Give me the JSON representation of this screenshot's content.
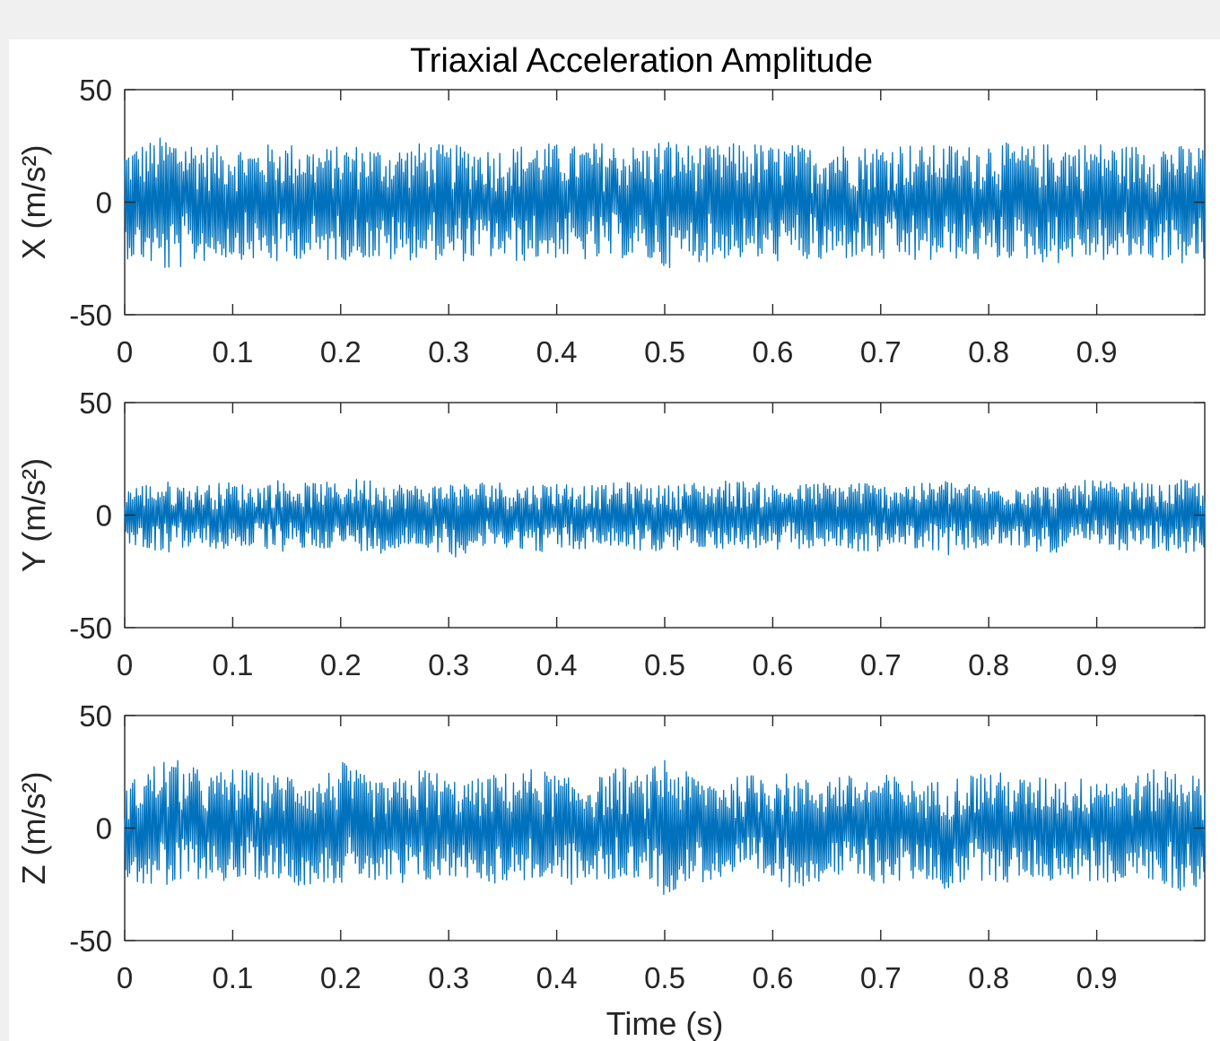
{
  "chart_data": {
    "type": "line",
    "title": "Triaxial Acceleration Amplitude",
    "xlabel": "Time (s)",
    "xlim": [
      0,
      1
    ],
    "x_ticks": [
      "0",
      "0.1",
      "0.2",
      "0.3",
      "0.4",
      "0.5",
      "0.6",
      "0.7",
      "0.8",
      "0.9"
    ],
    "y_ticks": [
      "50",
      "0",
      "-50"
    ],
    "grid": false,
    "line_color": "#0072BD",
    "subplots": [
      {
        "ylabel": "X (m/s²)",
        "ylim": [
          -50,
          50
        ],
        "series": [
          {
            "x": [
              0.0,
              0.02,
              0.04,
              0.06,
              0.08,
              0.1,
              0.12,
              0.14,
              0.16,
              0.18,
              0.2,
              0.22,
              0.24,
              0.26,
              0.28,
              0.3,
              0.32,
              0.34,
              0.36,
              0.38,
              0.4,
              0.42,
              0.44,
              0.46,
              0.48,
              0.5,
              0.52,
              0.54,
              0.56,
              0.58,
              0.6,
              0.62,
              0.64,
              0.66,
              0.68,
              0.7,
              0.72,
              0.74,
              0.76,
              0.78,
              0.8,
              0.82,
              0.84,
              0.86,
              0.88,
              0.9,
              0.92,
              0.94,
              0.96,
              0.98,
              1.0
            ],
            "upper": [
              24,
              27,
              30,
              28,
              25,
              26,
              24,
              27,
              26,
              24,
              25,
              26,
              24,
              25,
              27,
              25,
              26,
              24,
              25,
              27,
              26,
              25,
              27,
              26,
              25,
              29,
              26,
              25,
              26,
              27,
              25,
              26,
              24,
              27,
              25,
              26,
              27,
              25,
              26,
              25,
              28,
              26,
              25,
              27,
              26,
              27,
              25,
              26,
              27,
              25,
              26
            ],
            "lower": [
              -25,
              -27,
              -32,
              -28,
              -26,
              -25,
              -26,
              -28,
              -25,
              -27,
              -26,
              -25,
              -27,
              -26,
              -25,
              -27,
              -26,
              -25,
              -27,
              -26,
              -25,
              -26,
              -27,
              -25,
              -26,
              -30,
              -26,
              -27,
              -25,
              -26,
              -27,
              -25,
              -28,
              -26,
              -25,
              -27,
              -26,
              -28,
              -25,
              -26,
              -27,
              -25,
              -26,
              -28,
              -25,
              -26,
              -27,
              -25,
              -26,
              -28,
              -27
            ]
          }
        ]
      },
      {
        "ylabel": "Y (m/s²)",
        "ylim": [
          -50,
          50
        ],
        "series": [
          {
            "x": [
              0.0,
              0.02,
              0.04,
              0.06,
              0.08,
              0.1,
              0.12,
              0.14,
              0.16,
              0.18,
              0.2,
              0.22,
              0.24,
              0.26,
              0.28,
              0.3,
              0.32,
              0.34,
              0.36,
              0.38,
              0.4,
              0.42,
              0.44,
              0.46,
              0.48,
              0.5,
              0.52,
              0.54,
              0.56,
              0.58,
              0.6,
              0.62,
              0.64,
              0.66,
              0.68,
              0.7,
              0.72,
              0.74,
              0.76,
              0.78,
              0.8,
              0.82,
              0.84,
              0.86,
              0.88,
              0.9,
              0.92,
              0.94,
              0.96,
              0.98,
              1.0
            ],
            "upper": [
              13,
              14,
              15,
              13,
              14,
              15,
              13,
              16,
              14,
              15,
              14,
              17,
              15,
              14,
              13,
              15,
              14,
              16,
              13,
              14,
              15,
              14,
              13,
              15,
              14,
              13,
              15,
              14,
              16,
              15,
              14,
              13,
              15,
              14,
              16,
              13,
              15,
              14,
              16,
              14,
              13,
              15,
              14,
              13,
              15,
              16,
              14,
              15,
              13,
              16,
              15
            ],
            "lower": [
              -12,
              -15,
              -17,
              -14,
              -16,
              -15,
              -14,
              -17,
              -16,
              -15,
              -14,
              -16,
              -17,
              -15,
              -14,
              -20,
              -16,
              -15,
              -14,
              -17,
              -15,
              -16,
              -14,
              -15,
              -16,
              -18,
              -15,
              -14,
              -16,
              -15,
              -17,
              -16,
              -14,
              -15,
              -17,
              -16,
              -14,
              -15,
              -18,
              -16,
              -15,
              -14,
              -16,
              -17,
              -15,
              -14,
              -16,
              -15,
              -17,
              -18,
              -15
            ]
          }
        ]
      },
      {
        "ylabel": "Z (m/s²)",
        "ylim": [
          -50,
          50
        ],
        "series": [
          {
            "x": [
              0.0,
              0.02,
              0.04,
              0.06,
              0.08,
              0.1,
              0.12,
              0.14,
              0.16,
              0.18,
              0.2,
              0.22,
              0.24,
              0.26,
              0.28,
              0.3,
              0.32,
              0.34,
              0.36,
              0.38,
              0.4,
              0.42,
              0.44,
              0.46,
              0.48,
              0.5,
              0.52,
              0.54,
              0.56,
              0.58,
              0.6,
              0.62,
              0.64,
              0.66,
              0.68,
              0.7,
              0.72,
              0.74,
              0.76,
              0.78,
              0.8,
              0.82,
              0.84,
              0.86,
              0.88,
              0.9,
              0.92,
              0.94,
              0.96,
              0.98,
              1.0
            ],
            "upper": [
              18,
              27,
              32,
              28,
              24,
              27,
              25,
              24,
              26,
              22,
              30,
              24,
              20,
              23,
              28,
              22,
              21,
              24,
              25,
              27,
              24,
              21,
              23,
              28,
              22,
              33,
              25,
              23,
              22,
              24,
              27,
              23,
              21,
              25,
              22,
              24,
              23,
              20,
              22,
              24,
              27,
              23,
              22,
              24,
              21,
              26,
              22,
              24,
              27,
              28,
              20
            ],
            "lower": [
              -22,
              -26,
              -28,
              -24,
              -22,
              -25,
              -23,
              -22,
              -26,
              -24,
              -25,
              -22,
              -27,
              -28,
              -24,
              -23,
              -22,
              -25,
              -24,
              -23,
              -25,
              -26,
              -24,
              -23,
              -22,
              -30,
              -25,
              -24,
              -22,
              -23,
              -25,
              -27,
              -24,
              -22,
              -23,
              -25,
              -24,
              -23,
              -28,
              -24,
              -23,
              -25,
              -22,
              -24,
              -23,
              -25,
              -24,
              -22,
              -26,
              -29,
              -24
            ]
          }
        ]
      }
    ]
  }
}
